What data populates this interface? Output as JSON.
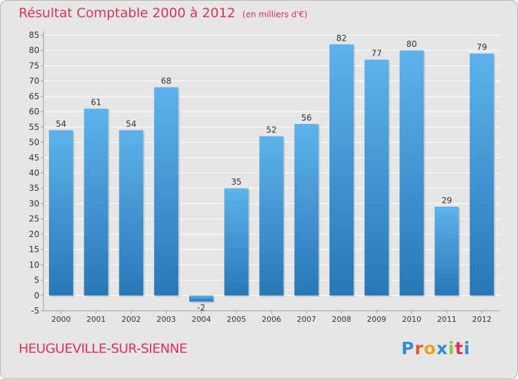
{
  "header": {
    "title": "Résultat Comptable 2000 à 2012",
    "unit": "(en milliers d'€)"
  },
  "footer": {
    "commune": "HEUGUEVILLE-SUR-SIENNE",
    "logo_letters": [
      "P",
      "r",
      "o",
      "x",
      "i",
      "t",
      "i"
    ],
    "logo_colors": [
      "#2f8fd0",
      "#e05a2a",
      "#f0a020",
      "#2f8fd0",
      "#8cc63f",
      "#e0305c",
      "#2f8fd0"
    ]
  },
  "colors": {
    "title": "#e0305c",
    "bar_top": "#5eb2ea",
    "bar_bottom": "#2878b8",
    "grid": "#ffffff",
    "background": "#e6e6e6"
  },
  "chart_data": {
    "type": "bar",
    "categories": [
      "2000",
      "2001",
      "2002",
      "2003",
      "2004",
      "2005",
      "2006",
      "2007",
      "2008",
      "2009",
      "2010",
      "2011",
      "2012"
    ],
    "values": [
      54,
      61,
      54,
      68,
      -2,
      35,
      52,
      56,
      82,
      77,
      80,
      29,
      79
    ],
    "data_labels": [
      "54",
      "61",
      "54",
      "68",
      "-2",
      "35",
      "52",
      "56",
      "82",
      "77",
      "80",
      "29",
      "79"
    ],
    "yticks": [
      -5,
      0,
      5,
      10,
      15,
      20,
      25,
      30,
      35,
      40,
      45,
      50,
      55,
      60,
      65,
      70,
      75,
      80,
      85
    ],
    "ylim": [
      -5,
      85
    ],
    "grid": true,
    "legend": "none",
    "title": "Résultat Comptable 2000 à 2012",
    "xlabel": "",
    "ylabel": ""
  }
}
